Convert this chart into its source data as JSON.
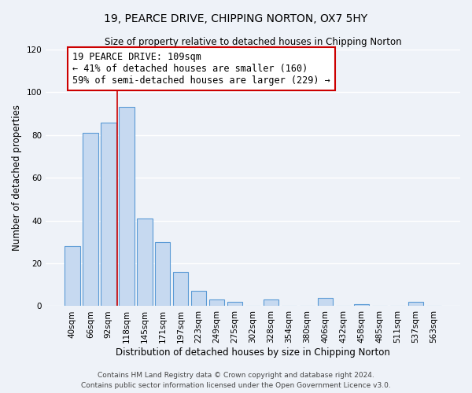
{
  "title": "19, PEARCE DRIVE, CHIPPING NORTON, OX7 5HY",
  "subtitle": "Size of property relative to detached houses in Chipping Norton",
  "xlabel": "Distribution of detached houses by size in Chipping Norton",
  "ylabel": "Number of detached properties",
  "categories": [
    "40sqm",
    "66sqm",
    "92sqm",
    "118sqm",
    "145sqm",
    "171sqm",
    "197sqm",
    "223sqm",
    "249sqm",
    "275sqm",
    "302sqm",
    "328sqm",
    "354sqm",
    "380sqm",
    "406sqm",
    "432sqm",
    "458sqm",
    "485sqm",
    "511sqm",
    "537sqm",
    "563sqm"
  ],
  "values": [
    28,
    81,
    86,
    93,
    41,
    30,
    16,
    7,
    3,
    2,
    0,
    3,
    0,
    0,
    4,
    0,
    1,
    0,
    0,
    2,
    0
  ],
  "bar_color": "#c6d9f0",
  "bar_edge_color": "#5a9ad5",
  "vline_x_index": 3,
  "vline_color": "#cc0000",
  "annotation_text": "19 PEARCE DRIVE: 109sqm\n← 41% of detached houses are smaller (160)\n59% of semi-detached houses are larger (229) →",
  "annotation_box_edge": "#cc0000",
  "ylim": [
    0,
    120
  ],
  "yticks": [
    0,
    20,
    40,
    60,
    80,
    100,
    120
  ],
  "footer1": "Contains HM Land Registry data © Crown copyright and database right 2024.",
  "footer2": "Contains public sector information licensed under the Open Government Licence v3.0.",
  "bg_color": "#eef2f8",
  "plot_bg_color": "#eef2f8",
  "grid_color": "#ffffff",
  "title_fontsize": 10,
  "subtitle_fontsize": 8.5,
  "axis_label_fontsize": 8.5,
  "tick_fontsize": 7.5,
  "annotation_fontsize": 8.5,
  "footer_fontsize": 6.5
}
